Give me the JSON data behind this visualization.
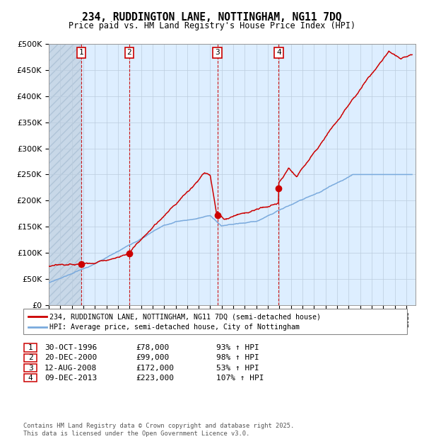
{
  "title": "234, RUDDINGTON LANE, NOTTINGHAM, NG11 7DQ",
  "subtitle": "Price paid vs. HM Land Registry's House Price Index (HPI)",
  "legend_entry1": "234, RUDDINGTON LANE, NOTTINGHAM, NG11 7DQ (semi-detached house)",
  "legend_entry2": "HPI: Average price, semi-detached house, City of Nottingham",
  "footer": "Contains HM Land Registry data © Crown copyright and database right 2025.\nThis data is licensed under the Open Government Licence v3.0.",
  "sale_points": [
    {
      "label": "1",
      "date": "30-OCT-1996",
      "price": 78000,
      "pct": "93% ↑ HPI",
      "x_year": 1996.83
    },
    {
      "label": "2",
      "date": "20-DEC-2000",
      "price": 99000,
      "pct": "98% ↑ HPI",
      "x_year": 2000.97
    },
    {
      "label": "3",
      "date": "12-AUG-2008",
      "price": 172000,
      "pct": "53% ↑ HPI",
      "x_year": 2008.62
    },
    {
      "label": "4",
      "date": "09-DEC-2013",
      "price": 223000,
      "pct": "107% ↑ HPI",
      "x_year": 2013.94
    }
  ],
  "vline_x": [
    1996.83,
    2000.97,
    2008.62,
    2013.94
  ],
  "hpi_color": "#7aaadd",
  "price_color": "#cc0000",
  "bg_color": "#ffffff",
  "chart_bg": "#ddeeff",
  "grid_color": "#bbccdd",
  "ylim": [
    0,
    500000
  ],
  "xlim": [
    1994.0,
    2025.8
  ],
  "yticks": [
    0,
    50000,
    100000,
    150000,
    200000,
    250000,
    300000,
    350000,
    400000,
    450000,
    500000
  ]
}
